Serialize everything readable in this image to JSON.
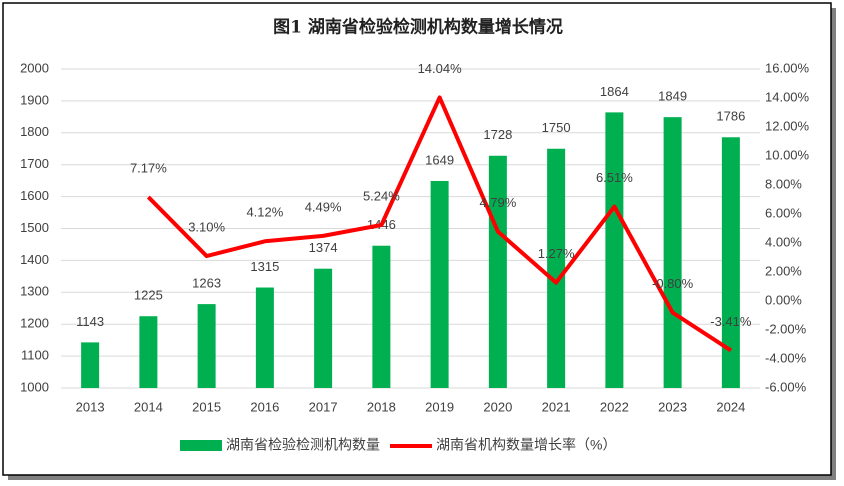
{
  "chart_data": {
    "type": "combo",
    "title": "图1 湖南省检验检测机构数量增长情况",
    "categories": [
      "2013",
      "2014",
      "2015",
      "2016",
      "2017",
      "2018",
      "2019",
      "2020",
      "2021",
      "2022",
      "2023",
      "2024"
    ],
    "series": [
      {
        "name": "湖南省检验检测机构数量",
        "type": "bar",
        "color": "#00b050",
        "values": [
          1143,
          1225,
          1263,
          1315,
          1374,
          1446,
          1649,
          1728,
          1750,
          1864,
          1849,
          1786
        ]
      },
      {
        "name": "湖南省机构数量增长率（%）",
        "type": "line",
        "axis": "y2",
        "color": "#ff0000",
        "values": [
          null,
          7.17,
          3.1,
          4.12,
          4.49,
          5.24,
          14.04,
          4.79,
          1.27,
          6.51,
          -0.8,
          -3.41
        ],
        "value_labels": [
          null,
          "7.17%",
          "3.10%",
          "4.12%",
          "4.49%",
          "5.24%",
          "14.04%",
          "4.79%",
          "1.27%",
          "6.51%",
          "-0.80%",
          "-3.41%"
        ]
      }
    ],
    "ylim": [
      1000,
      2000
    ],
    "yticks": [
      1000,
      1100,
      1200,
      1300,
      1400,
      1500,
      1600,
      1700,
      1800,
      1900,
      2000
    ],
    "y2lim": [
      -6,
      16
    ],
    "y2ticks": [
      {
        "value": -6,
        "label": "-6.00%"
      },
      {
        "value": -4,
        "label": "-4.00%"
      },
      {
        "value": -2,
        "label": "-2.00%"
      },
      {
        "value": 0,
        "label": "0.00%"
      },
      {
        "value": 2,
        "label": "2.00%"
      },
      {
        "value": 4,
        "label": "4.00%"
      },
      {
        "value": 6,
        "label": "6.00%"
      },
      {
        "value": 8,
        "label": "8.00%"
      },
      {
        "value": 10,
        "label": "10.00%"
      },
      {
        "value": 12,
        "label": "12.00%"
      },
      {
        "value": 14,
        "label": "14.00%"
      },
      {
        "value": 16,
        "label": "16.00%"
      }
    ],
    "grid": true,
    "legend": "bottom"
  }
}
